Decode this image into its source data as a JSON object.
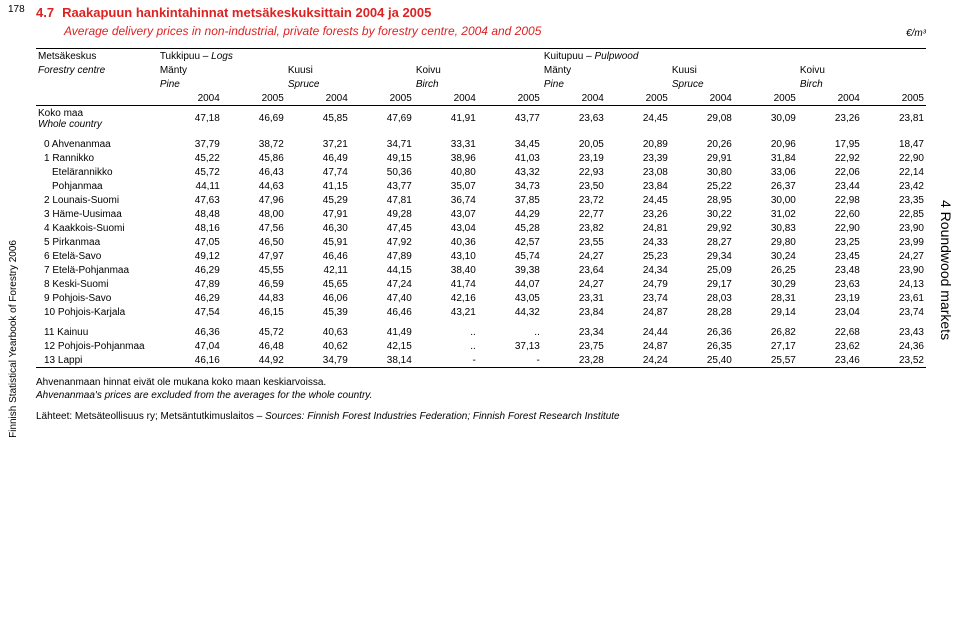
{
  "pageNumber": "178",
  "sideLeft": "Finnish Statistical Yearbook of Forestry 2006",
  "sideRight": "4 Roundwood markets",
  "title": {
    "num": "4.7",
    "fi": "Raakapuun hankintahinnat metsäkeskuksittain 2004 ja 2005",
    "en": "Average delivery prices in non-industrial, private forests by forestry centre, 2004 and 2005"
  },
  "unit": "€/m³",
  "header": {
    "metsa_fi": "Metsäkeskus",
    "forestry_en": "Forestry centre",
    "logs_fi": "Tukkipuu –",
    "logs_en": "Logs",
    "pulp_fi": "Kuitupuu –",
    "pulp_en": "Pulpwood",
    "manty": "Mänty",
    "pine": "Pine",
    "kuusi": "Kuusi",
    "spruce": "Spruce",
    "koivu": "Koivu",
    "birch": "Birch",
    "y2004": "2004",
    "y2005": "2005"
  },
  "rows": [
    {
      "label_fi": "Koko maa",
      "label_en": "Whole country",
      "vals": [
        "47,18",
        "46,69",
        "45,85",
        "47,69",
        "41,91",
        "43,77",
        "23,63",
        "24,45",
        "29,08",
        "30,09",
        "23,26",
        "23,81"
      ],
      "bold": false,
      "spacer_after": true
    },
    {
      "label": "0 Ahvenanmaa",
      "vals": [
        "37,79",
        "38,72",
        "37,21",
        "34,71",
        "33,31",
        "34,45",
        "20,05",
        "20,89",
        "20,26",
        "20,96",
        "17,95",
        "18,47"
      ],
      "indent": 1
    },
    {
      "label": "1 Rannikko",
      "vals": [
        "45,22",
        "45,86",
        "46,49",
        "49,15",
        "38,96",
        "41,03",
        "23,19",
        "23,39",
        "29,91",
        "31,84",
        "22,92",
        "22,90"
      ],
      "indent": 1
    },
    {
      "label": "Etelärannikko",
      "vals": [
        "45,72",
        "46,43",
        "47,74",
        "50,36",
        "40,80",
        "43,32",
        "22,93",
        "23,08",
        "30,80",
        "33,06",
        "22,06",
        "22,14"
      ],
      "indent": 2
    },
    {
      "label": "Pohjanmaa",
      "vals": [
        "44,11",
        "44,63",
        "41,15",
        "43,77",
        "35,07",
        "34,73",
        "23,50",
        "23,84",
        "25,22",
        "26,37",
        "23,44",
        "23,42"
      ],
      "indent": 2
    },
    {
      "label": "2 Lounais-Suomi",
      "vals": [
        "47,63",
        "47,96",
        "45,29",
        "47,81",
        "36,74",
        "37,85",
        "23,72",
        "24,45",
        "28,95",
        "30,00",
        "22,98",
        "23,35"
      ],
      "indent": 1
    },
    {
      "label": "3 Häme-Uusimaa",
      "vals": [
        "48,48",
        "48,00",
        "47,91",
        "49,28",
        "43,07",
        "44,29",
        "22,77",
        "23,26",
        "30,22",
        "31,02",
        "22,60",
        "22,85"
      ],
      "indent": 1
    },
    {
      "label": "4 Kaakkois-Suomi",
      "vals": [
        "48,16",
        "47,56",
        "46,30",
        "47,45",
        "43,04",
        "45,28",
        "23,82",
        "24,81",
        "29,92",
        "30,83",
        "22,90",
        "23,90"
      ],
      "indent": 1
    },
    {
      "label": "5 Pirkanmaa",
      "vals": [
        "47,05",
        "46,50",
        "45,91",
        "47,92",
        "40,36",
        "42,57",
        "23,55",
        "24,33",
        "28,27",
        "29,80",
        "23,25",
        "23,99"
      ],
      "indent": 1
    },
    {
      "label": "6 Etelä-Savo",
      "vals": [
        "49,12",
        "47,97",
        "46,46",
        "47,89",
        "43,10",
        "45,74",
        "24,27",
        "25,23",
        "29,34",
        "30,24",
        "23,45",
        "24,27"
      ],
      "indent": 1
    },
    {
      "label": "7 Etelä-Pohjanmaa",
      "vals": [
        "46,29",
        "45,55",
        "42,11",
        "44,15",
        "38,40",
        "39,38",
        "23,64",
        "24,34",
        "25,09",
        "26,25",
        "23,48",
        "23,90"
      ],
      "indent": 1
    },
    {
      "label": "8 Keski-Suomi",
      "vals": [
        "47,89",
        "46,59",
        "45,65",
        "47,24",
        "41,74",
        "44,07",
        "24,27",
        "24,79",
        "29,17",
        "30,29",
        "23,63",
        "24,13"
      ],
      "indent": 1
    },
    {
      "label": "9 Pohjois-Savo",
      "vals": [
        "46,29",
        "44,83",
        "46,06",
        "47,40",
        "42,16",
        "43,05",
        "23,31",
        "23,74",
        "28,03",
        "28,31",
        "23,19",
        "23,61"
      ],
      "indent": 1
    },
    {
      "label": "10 Pohjois-Karjala",
      "vals": [
        "47,54",
        "46,15",
        "45,39",
        "46,46",
        "43,21",
        "44,32",
        "23,84",
        "24,87",
        "28,28",
        "29,14",
        "23,04",
        "23,74"
      ],
      "indent": 1,
      "spacer_after": true
    },
    {
      "label": "11 Kainuu",
      "vals": [
        "46,36",
        "45,72",
        "40,63",
        "41,49",
        "..",
        "..",
        "23,34",
        "24,44",
        "26,36",
        "26,82",
        "22,68",
        "23,43"
      ],
      "indent": 1
    },
    {
      "label": "12 Pohjois-Pohjanmaa",
      "vals": [
        "47,04",
        "46,48",
        "40,62",
        "42,15",
        "..",
        "37,13",
        "23,75",
        "24,87",
        "26,35",
        "27,17",
        "23,62",
        "24,36"
      ],
      "indent": 1
    },
    {
      "label": "13 Lappi",
      "vals": [
        "46,16",
        "44,92",
        "34,79",
        "38,14",
        "-",
        "-",
        "23,28",
        "24,24",
        "25,40",
        "25,57",
        "23,46",
        "23,52"
      ],
      "indent": 1,
      "hline": true
    }
  ],
  "notes": {
    "fi": "Ahvenanmaan hinnat eivät ole mukana koko maan keskiarvoissa.",
    "en": "Ahvenanmaa's prices are excluded from the averages for the whole country.",
    "src_fi": "Lähteet: Metsäteollisuus ry; Metsäntutkimuslaitos – ",
    "src_en": "Sources: Finnish Forest Industries Federation; Finnish Forest Research Institute"
  }
}
